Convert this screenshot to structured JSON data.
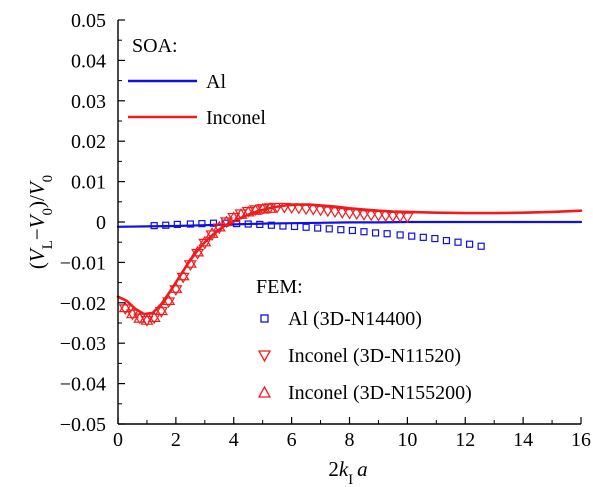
{
  "chart_data": {
    "type": "line",
    "title": "",
    "xlabel_parts": {
      "pre": "2",
      "main": "k",
      "sub": "I",
      "post": "a"
    },
    "ylabel_parts": {
      "open": "(",
      "v1": "V",
      "s1": "L",
      "minus": "−",
      "v2": "V",
      "s2": "0",
      "close": ")/",
      "v3": "V",
      "s3": "0"
    },
    "xlim": [
      0,
      16
    ],
    "ylim": [
      -0.05,
      0.05
    ],
    "x_ticks": [
      0,
      2,
      4,
      6,
      8,
      10,
      12,
      14,
      16
    ],
    "x_tick_labels": [
      "0",
      "2",
      "4",
      "6",
      "8",
      "10",
      "12",
      "14",
      "16"
    ],
    "y_ticks": [
      0.05,
      0.04,
      0.03,
      0.02,
      0.01,
      0,
      -0.01,
      -0.02,
      -0.03,
      -0.04,
      -0.05
    ],
    "y_tick_labels": [
      "0.05",
      "0.04",
      "0.03",
      "0.02",
      "0.01",
      "0",
      "−0.01",
      "−0.02",
      "−0.03",
      "−0.04",
      "−0.05"
    ],
    "grid": false,
    "legend_soa_title": "SOA:",
    "legend_fem_title": "FEM:",
    "colors": {
      "blue": "#1010e0",
      "red": "#ee1c1c"
    },
    "series": [
      {
        "name": "Al",
        "group": "SOA",
        "kind": "line",
        "color": "#1010e0",
        "x": [
          0,
          1,
          2,
          3,
          4,
          5,
          6,
          7,
          8,
          9,
          10,
          12,
          14,
          16
        ],
        "y": [
          -0.0012,
          -0.0011,
          -0.001,
          -0.0008,
          -0.0006,
          -0.0004,
          -0.0003,
          -0.0002,
          -0.0001,
          -0.0001,
          0,
          0,
          0,
          0
        ]
      },
      {
        "name": "Inconel",
        "group": "SOA",
        "kind": "line",
        "color": "#ee1c1c",
        "x": [
          0,
          0.3,
          0.6,
          0.9,
          1.2,
          1.5,
          1.8,
          2.1,
          2.4,
          2.7,
          3.0,
          3.3,
          3.6,
          3.9,
          4.2,
          4.5,
          4.8,
          5.1,
          5.4,
          5.8,
          6.2,
          6.6,
          7.0,
          7.5,
          8.0,
          8.5,
          9.0,
          9.5,
          10.0,
          11,
          12,
          13,
          14,
          15,
          16
        ],
        "y": [
          -0.0185,
          -0.0195,
          -0.0215,
          -0.0228,
          -0.0225,
          -0.0203,
          -0.0172,
          -0.0138,
          -0.0105,
          -0.0075,
          -0.005,
          -0.003,
          -0.0013,
          -0.0001,
          0.0009,
          0.0018,
          0.0026,
          0.0032,
          0.0037,
          0.0041,
          0.0043,
          0.0043,
          0.0041,
          0.0038,
          0.0034,
          0.0031,
          0.0028,
          0.0026,
          0.0025,
          0.0023,
          0.0022,
          0.0022,
          0.0023,
          0.0025,
          0.0028
        ]
      },
      {
        "name": "Al (3D-N14400)",
        "group": "FEM",
        "kind": "marker",
        "marker": "square",
        "color": "#1010e0",
        "x": [
          1.25,
          1.65,
          2.05,
          2.5,
          2.9,
          3.3,
          3.7,
          4.1,
          4.5,
          4.9,
          5.3,
          5.7,
          6.1,
          6.5,
          6.9,
          7.3,
          7.7,
          8.1,
          8.5,
          8.9,
          9.3,
          9.75,
          10.15,
          10.55,
          10.95,
          11.35,
          11.75,
          12.15,
          12.55
        ],
        "y": [
          -0.0009,
          -0.0008,
          -0.0006,
          -0.0005,
          -0.0004,
          -0.0003,
          -0.0003,
          -0.0004,
          -0.0005,
          -0.0006,
          -0.0008,
          -0.001,
          -0.0011,
          -0.0013,
          -0.0015,
          -0.0017,
          -0.0019,
          -0.0021,
          -0.0024,
          -0.0027,
          -0.0029,
          -0.0032,
          -0.0035,
          -0.0038,
          -0.0041,
          -0.0046,
          -0.005,
          -0.0055,
          -0.006
        ]
      },
      {
        "name": "Inconel (3D-N11520)",
        "group": "FEM",
        "kind": "marker",
        "marker": "triangle-down",
        "color": "#ee1c1c",
        "x": [
          0.25,
          0.5,
          0.75,
          1.0,
          1.25,
          1.5,
          1.75,
          2.0,
          2.25,
          2.5,
          2.75,
          3.0,
          3.25,
          3.5,
          3.75,
          4.0,
          4.25,
          4.5,
          4.75,
          5.0,
          5.25,
          5.5,
          5.75,
          6.0,
          6.25,
          6.5,
          6.75,
          7.0,
          7.25,
          7.5,
          7.75,
          8.0,
          8.25,
          8.5,
          8.75,
          9.0,
          9.25,
          9.5,
          9.75,
          10.0
        ],
        "y": [
          -0.0215,
          -0.0228,
          -0.0238,
          -0.0244,
          -0.0238,
          -0.0222,
          -0.0198,
          -0.0168,
          -0.0137,
          -0.0106,
          -0.0078,
          -0.0053,
          -0.0032,
          -0.0015,
          0,
          0.0011,
          0.002,
          0.0026,
          0.003,
          0.0033,
          0.0035,
          0.0036,
          0.0036,
          0.0035,
          0.0034,
          0.0032,
          0.0031,
          0.0029,
          0.0027,
          0.0025,
          0.0023,
          0.0021,
          0.002,
          0.0018,
          0.0017,
          0.0016,
          0.0015,
          0.0014,
          0.0013,
          0.0012
        ]
      },
      {
        "name": "Inconel (3D-N155200)",
        "group": "FEM",
        "kind": "marker",
        "marker": "triangle-up",
        "color": "#ee1c1c",
        "x": [
          0.25,
          0.5,
          0.75,
          1.0,
          1.25,
          1.5,
          1.75,
          2.0,
          2.25,
          2.5,
          2.75,
          3.0,
          3.25,
          3.5,
          3.75,
          4.0,
          4.25,
          4.5,
          4.75,
          5.0,
          5.25
        ],
        "y": [
          -0.0212,
          -0.0227,
          -0.0238,
          -0.0243,
          -0.0236,
          -0.0219,
          -0.0194,
          -0.0164,
          -0.0133,
          -0.0102,
          -0.0074,
          -0.0049,
          -0.0028,
          -0.0012,
          0.0001,
          0.0011,
          0.0019,
          0.0025,
          0.0029,
          0.0032,
          0.0034
        ]
      }
    ]
  }
}
